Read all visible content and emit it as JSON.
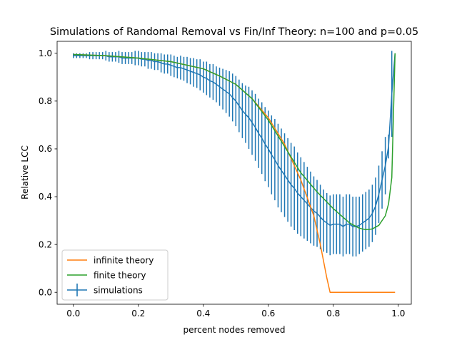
{
  "chart_data": {
    "type": "line",
    "title": "Simulations of Randomal Removal vs Fin/Inf Theory: n=100 and p=0.05",
    "xlabel": "percent nodes removed",
    "ylabel": "Relative LCC",
    "xlim": [
      -0.05,
      1.04
    ],
    "ylim": [
      -0.05,
      1.05
    ],
    "xticks": [
      0.0,
      0.2,
      0.4,
      0.6,
      0.8,
      1.0
    ],
    "xtick_labels": [
      "0.0",
      "0.2",
      "0.4",
      "0.6",
      "0.8",
      "1.0"
    ],
    "yticks": [
      0.0,
      0.2,
      0.4,
      0.6,
      0.8,
      1.0
    ],
    "ytick_labels": [
      "0.0",
      "0.2",
      "0.4",
      "0.6",
      "0.8",
      "1.0"
    ],
    "grid": false,
    "legend_position": "lower-left",
    "series": [
      {
        "name": "infinite theory",
        "color": "#ff7f0e",
        "x": [
          0.0,
          0.1,
          0.2,
          0.3,
          0.4,
          0.45,
          0.5,
          0.55,
          0.6,
          0.65,
          0.7,
          0.74,
          0.76,
          0.78,
          0.79,
          0.8,
          0.9,
          0.99
        ],
        "y": [
          0.995,
          0.99,
          0.98,
          0.965,
          0.935,
          0.905,
          0.87,
          0.81,
          0.73,
          0.62,
          0.47,
          0.32,
          0.2,
          0.06,
          0.0,
          0.0,
          0.0,
          0.0
        ]
      },
      {
        "name": "finite theory",
        "color": "#2ca02c",
        "x": [
          0.0,
          0.1,
          0.2,
          0.3,
          0.4,
          0.45,
          0.5,
          0.55,
          0.6,
          0.65,
          0.7,
          0.75,
          0.8,
          0.85,
          0.88,
          0.9,
          0.92,
          0.94,
          0.96,
          0.97,
          0.98,
          0.99
        ],
        "y": [
          0.995,
          0.99,
          0.98,
          0.965,
          0.935,
          0.905,
          0.87,
          0.81,
          0.72,
          0.61,
          0.5,
          0.42,
          0.35,
          0.29,
          0.268,
          0.262,
          0.265,
          0.28,
          0.32,
          0.37,
          0.48,
          1.0
        ]
      },
      {
        "name": "simulations",
        "color": "#1f77b4",
        "x": [
          0.0,
          0.01,
          0.02,
          0.03,
          0.04,
          0.05,
          0.06,
          0.07,
          0.08,
          0.09,
          0.1,
          0.11,
          0.12,
          0.13,
          0.14,
          0.15,
          0.16,
          0.17,
          0.18,
          0.19,
          0.2,
          0.21,
          0.22,
          0.23,
          0.24,
          0.25,
          0.26,
          0.27,
          0.28,
          0.29,
          0.3,
          0.31,
          0.32,
          0.33,
          0.34,
          0.35,
          0.36,
          0.37,
          0.38,
          0.39,
          0.4,
          0.41,
          0.42,
          0.43,
          0.44,
          0.45,
          0.46,
          0.47,
          0.48,
          0.49,
          0.5,
          0.51,
          0.52,
          0.53,
          0.54,
          0.55,
          0.56,
          0.57,
          0.58,
          0.59,
          0.6,
          0.61,
          0.62,
          0.63,
          0.64,
          0.65,
          0.66,
          0.67,
          0.68,
          0.69,
          0.7,
          0.71,
          0.72,
          0.73,
          0.74,
          0.75,
          0.76,
          0.77,
          0.78,
          0.79,
          0.8,
          0.81,
          0.82,
          0.83,
          0.84,
          0.85,
          0.86,
          0.87,
          0.88,
          0.89,
          0.9,
          0.91,
          0.92,
          0.93,
          0.94,
          0.95,
          0.96,
          0.97,
          0.98,
          0.99
        ],
        "y": [
          0.99,
          0.99,
          0.99,
          0.99,
          0.99,
          0.99,
          0.99,
          0.99,
          0.99,
          0.99,
          0.99,
          0.985,
          0.985,
          0.985,
          0.985,
          0.98,
          0.98,
          0.98,
          0.98,
          0.98,
          0.98,
          0.975,
          0.975,
          0.97,
          0.97,
          0.965,
          0.965,
          0.96,
          0.955,
          0.955,
          0.95,
          0.945,
          0.94,
          0.94,
          0.935,
          0.93,
          0.925,
          0.92,
          0.915,
          0.91,
          0.9,
          0.895,
          0.885,
          0.88,
          0.87,
          0.86,
          0.85,
          0.84,
          0.83,
          0.815,
          0.8,
          0.78,
          0.76,
          0.745,
          0.73,
          0.71,
          0.69,
          0.665,
          0.645,
          0.62,
          0.6,
          0.575,
          0.555,
          0.53,
          0.51,
          0.49,
          0.47,
          0.45,
          0.435,
          0.415,
          0.4,
          0.385,
          0.37,
          0.355,
          0.34,
          0.33,
          0.315,
          0.3,
          0.29,
          0.28,
          0.285,
          0.285,
          0.285,
          0.275,
          0.285,
          0.285,
          0.275,
          0.275,
          0.28,
          0.29,
          0.3,
          0.31,
          0.33,
          0.36,
          0.41,
          0.47,
          0.53,
          0.61,
          0.83,
          1.0
        ],
        "err": [
          0.01,
          0.01,
          0.01,
          0.01,
          0.01,
          0.015,
          0.015,
          0.015,
          0.015,
          0.015,
          0.02,
          0.02,
          0.02,
          0.02,
          0.025,
          0.025,
          0.025,
          0.025,
          0.025,
          0.03,
          0.03,
          0.03,
          0.03,
          0.035,
          0.035,
          0.035,
          0.035,
          0.04,
          0.04,
          0.04,
          0.045,
          0.045,
          0.045,
          0.05,
          0.05,
          0.055,
          0.055,
          0.06,
          0.06,
          0.065,
          0.065,
          0.07,
          0.07,
          0.075,
          0.075,
          0.08,
          0.085,
          0.09,
          0.095,
          0.1,
          0.105,
          0.11,
          0.115,
          0.12,
          0.13,
          0.135,
          0.14,
          0.145,
          0.15,
          0.155,
          0.16,
          0.165,
          0.17,
          0.175,
          0.175,
          0.175,
          0.175,
          0.175,
          0.175,
          0.17,
          0.165,
          0.16,
          0.155,
          0.15,
          0.145,
          0.14,
          0.135,
          0.13,
          0.125,
          0.125,
          0.125,
          0.125,
          0.125,
          0.125,
          0.125,
          0.125,
          0.125,
          0.125,
          0.12,
          0.12,
          0.12,
          0.12,
          0.12,
          0.12,
          0.12,
          0.12,
          0.12,
          0.05,
          0.18,
          0.0
        ]
      }
    ]
  }
}
